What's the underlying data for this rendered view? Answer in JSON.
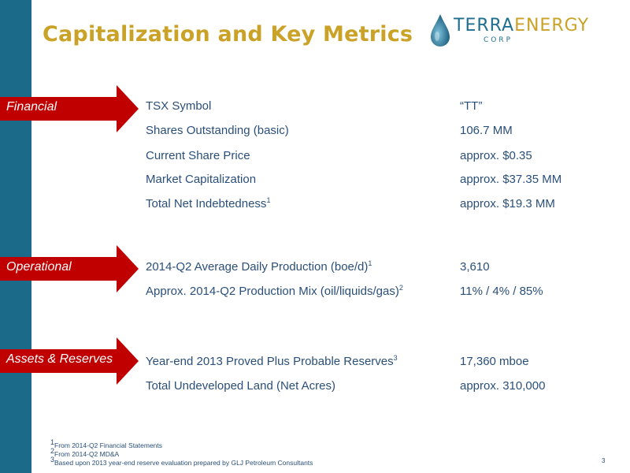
{
  "title": "Capitalization and Key Metrics",
  "logo": {
    "part1": "TERRA",
    "part2": "ENERGY",
    "sub": "CORP"
  },
  "sections": [
    {
      "label": "Financial",
      "rows": [
        {
          "label": "TSX Symbol",
          "sup": "",
          "value": "“TT”"
        },
        {
          "label": "Shares Outstanding (basic)",
          "sup": "",
          "value": "106.7 MM"
        },
        {
          "label": "Current Share Price",
          "sup": "",
          "value": "approx. $0.35"
        },
        {
          "label": "Market Capitalization",
          "sup": "",
          "value": "approx. $37.35 MM"
        },
        {
          "label": "Total Net Indebtedness",
          "sup": "1",
          "value": "approx. $19.3 MM"
        }
      ]
    },
    {
      "label": "Operational",
      "rows": [
        {
          "label": "2014-Q2 Average Daily Production (boe/d)",
          "sup": "1",
          "value": "3,610"
        },
        {
          "label": "Approx. 2014-Q2 Production Mix (oil/liquids/gas)",
          "sup": "2",
          "value": "11% / 4% / 85%"
        }
      ]
    },
    {
      "label": "Assets & Reserves",
      "rows": [
        {
          "label": "Year-end 2013 Proved Plus Probable Reserves",
          "sup": "3",
          "value": "17,360 mboe"
        },
        {
          "label": "Total Undeveloped Land (Net Acres)",
          "sup": "",
          "value": "approx. 310,000"
        }
      ]
    }
  ],
  "footnotes": [
    {
      "num": "1",
      "text": "From 2014-Q2 Financial Statements"
    },
    {
      "num": "2",
      "text": "From 2014-Q2 MD&A"
    },
    {
      "num": "3",
      "text": "Based upon 2013 year-end reserve evaluation prepared by GLJ Petroleum Consultants"
    }
  ],
  "page_number": "3",
  "colors": {
    "sidebar": "#1c6a8a",
    "title": "#c9a227",
    "arrow": "#c00000",
    "text": "#2a4f7a"
  }
}
